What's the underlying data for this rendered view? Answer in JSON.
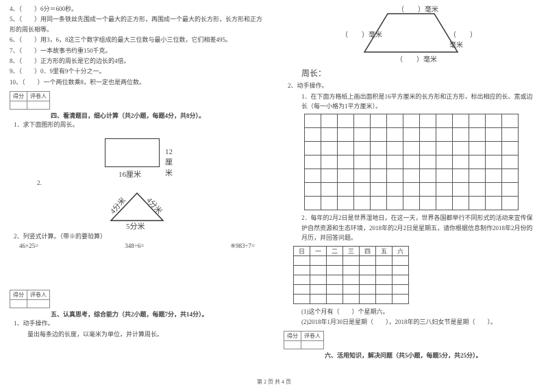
{
  "left": {
    "q4": "4、（　　）6分＝600秒。",
    "q5": "5、（　　）用同一条铁丝先围成一个最大的正方形，再围成一个最大的长方形，长方形和正方形的周长相等。",
    "q6": "6、（　　）用3，6，8这三个数字组成的最大三位数与最小三位数，它们相差495。",
    "q7": "7、（　　）一本故事书约重150千克。",
    "q8": "8、（　　）正方形的周长是它的边长的4倍。",
    "q9": "9、（　　）0．9里有9个十分之一。",
    "q10": "10、（　　）一个两位数乘8，积一定也是两位数。",
    "score_h1": "得分",
    "score_h2": "评卷人",
    "sec4_title": "四、看清题目，细心计算（共2小题，每题4分，共8分）。",
    "s4_q1": "1．求下面图形的周长。",
    "rect_r": "12厘米",
    "rect_b": "16厘米",
    "s4_q1_2": "2.",
    "tri_a": "4分米",
    "tri_b": "4分米",
    "tri_c": "5分米",
    "s4_q2": "2、列竖式计算。（带※的要验算）",
    "calc_a": "46×25=",
    "calc_b": "348÷6=",
    "calc_c": "※983÷7=",
    "sec5_title": "五、认真思考，综合能力（共2小题，每题7分，共14分）。",
    "s5_q1": "1、动手操作。",
    "s5_q1_desc": "量出每条边的长度，以毫米为单位，并计算周长。"
  },
  "right": {
    "trap_top": "（　　）毫米",
    "trap_left": "（　　）毫米",
    "trap_right": "（　　）毫米",
    "trap_bottom": "（　　）毫米",
    "perimeter_label": "周长：",
    "s5_q2": "2、动手操作。",
    "s5_q2_1": "1．在下面方格纸上画出面积是16平方厘米的长方形和正方形，标出相应的长、宽或边长（每一小格为1平方厘米）。",
    "grid": {
      "rows": 7,
      "cols": 13
    },
    "s5_q2_2": "2．每年的2月2日是世界湿地日，在这一天，世界各国都举行不同形式的活动来宣传保护自然资源和生态环境，2018年的2月2日是星期五，请你根据信息制作2018年2月份的月历，并回答问题。",
    "cal_headers": [
      "日",
      "一",
      "二",
      "三",
      "四",
      "五",
      "六"
    ],
    "cal_rows": 5,
    "s5_q2_2a": "(1)这个月有（　　）个星期六。",
    "s5_q2_2b": "(2)2018年1月30日是星期（　　），2018年的三八妇女节是星期（　　）。",
    "score_h1": "得分",
    "score_h2": "评卷人",
    "sec6_title": "六、活用知识，解决问题（共5小题，每题5分，共25分）。"
  },
  "footer": "第 2 页 共 4 页"
}
